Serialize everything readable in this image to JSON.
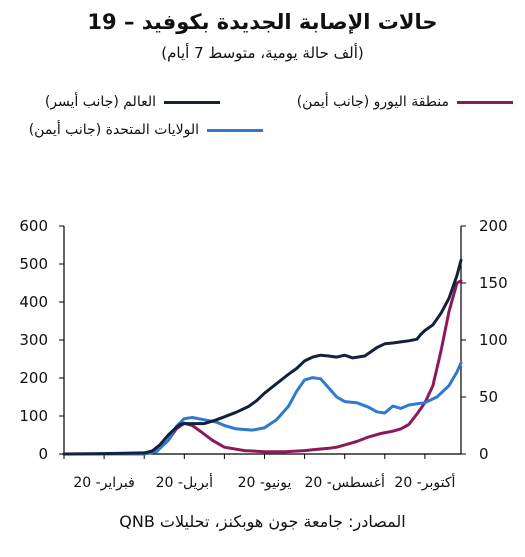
{
  "title": "حالات الإصابة الجديدة بكوفيد – 19",
  "subtitle": "(ألف حالة يومية، متوسط 7 أيام)",
  "source": "المصادر: جامعة جون هوبكنز، تحليلات QNB",
  "colors": {
    "world": "#14213d",
    "eurozone": "#8b1a5c",
    "us": "#2f7ad1"
  },
  "chart_data": {
    "type": "line",
    "title": "حالات الإصابة الجديدة بكوفيد – 19",
    "subtitle": "(ألف حالة يومية، متوسط 7 أيام)",
    "x_unit": "month-2020",
    "xlim": [
      1.0,
      10.9
    ],
    "x_ticks": [
      {
        "x": 2,
        "label": "فبراير- 20"
      },
      {
        "x": 4,
        "label": "أبريل- 20"
      },
      {
        "x": 6,
        "label": "يونيو- 20"
      },
      {
        "x": 8,
        "label": "أغسطس- 20"
      },
      {
        "x": 10,
        "label": "أكتوبر- 20"
      }
    ],
    "y_left": {
      "lim": [
        0,
        600
      ],
      "ticks": [
        0,
        100,
        200,
        300,
        400,
        500,
        600
      ]
    },
    "y_right": {
      "lim": [
        0,
        200
      ],
      "ticks": [
        0,
        50,
        100,
        150,
        200
      ]
    },
    "legend": [
      "العالم (جانب أيسر)",
      "منطقة اليورو (جانب أيمن)",
      "الولايات المتحدة (جانب أيمن)"
    ],
    "series": [
      {
        "name": "العالم (جانب أيسر)",
        "axis": "left",
        "color": "#14213d",
        "x": [
          1.0,
          2.0,
          2.5,
          3.0,
          3.2,
          3.4,
          3.6,
          3.8,
          3.9,
          4.0,
          4.2,
          4.5,
          4.8,
          5.0,
          5.3,
          5.6,
          5.8,
          6.0,
          6.3,
          6.6,
          6.8,
          7.0,
          7.2,
          7.4,
          7.6,
          7.8,
          8.0,
          8.2,
          8.5,
          8.8,
          9.0,
          9.2,
          9.4,
          9.6,
          9.8,
          9.9,
          10.0,
          10.2,
          10.4,
          10.6,
          10.8,
          10.9
        ],
        "y": [
          0,
          1,
          2,
          3,
          8,
          25,
          50,
          70,
          78,
          80,
          80,
          80,
          90,
          98,
          110,
          125,
          140,
          160,
          185,
          210,
          225,
          245,
          255,
          260,
          258,
          255,
          260,
          253,
          258,
          280,
          290,
          292,
          295,
          298,
          302,
          315,
          325,
          340,
          370,
          410,
          470,
          510
        ]
      },
      {
        "name": "منطقة اليورو (جانب أيمن)",
        "axis": "right",
        "color": "#8b1a5c",
        "x": [
          1.0,
          3.0,
          3.3,
          3.6,
          3.8,
          4.0,
          4.2,
          4.4,
          4.7,
          5.0,
          5.5,
          6.0,
          6.5,
          7.0,
          7.3,
          7.6,
          7.8,
          8.0,
          8.3,
          8.6,
          8.9,
          9.2,
          9.4,
          9.6,
          9.8,
          10.0,
          10.2,
          10.4,
          10.6,
          10.8,
          10.9
        ],
        "y": [
          0,
          0,
          2,
          12,
          22,
          27,
          25,
          20,
          12,
          6,
          3,
          2,
          2,
          3,
          4,
          5,
          6,
          8,
          11,
          15,
          18,
          20,
          22,
          26,
          35,
          45,
          60,
          90,
          125,
          150,
          152
        ]
      },
      {
        "name": "الولايات المتحدة (جانب أيمن)",
        "axis": "right",
        "color": "#2f7ad1",
        "x": [
          1.0,
          3.0,
          3.3,
          3.6,
          3.8,
          4.0,
          4.2,
          4.5,
          4.8,
          5.0,
          5.3,
          5.7,
          6.0,
          6.3,
          6.6,
          6.8,
          7.0,
          7.2,
          7.4,
          7.6,
          7.8,
          8.0,
          8.3,
          8.6,
          8.8,
          9.0,
          9.2,
          9.4,
          9.6,
          9.8,
          10.0,
          10.3,
          10.6,
          10.8,
          10.9
        ],
        "y": [
          0,
          0,
          2,
          12,
          24,
          31,
          32,
          30,
          28,
          25,
          22,
          21,
          23,
          30,
          42,
          55,
          65,
          67,
          66,
          58,
          50,
          46,
          45,
          41,
          37,
          36,
          42,
          40,
          43,
          44,
          45,
          50,
          60,
          72,
          80
        ]
      }
    ]
  }
}
